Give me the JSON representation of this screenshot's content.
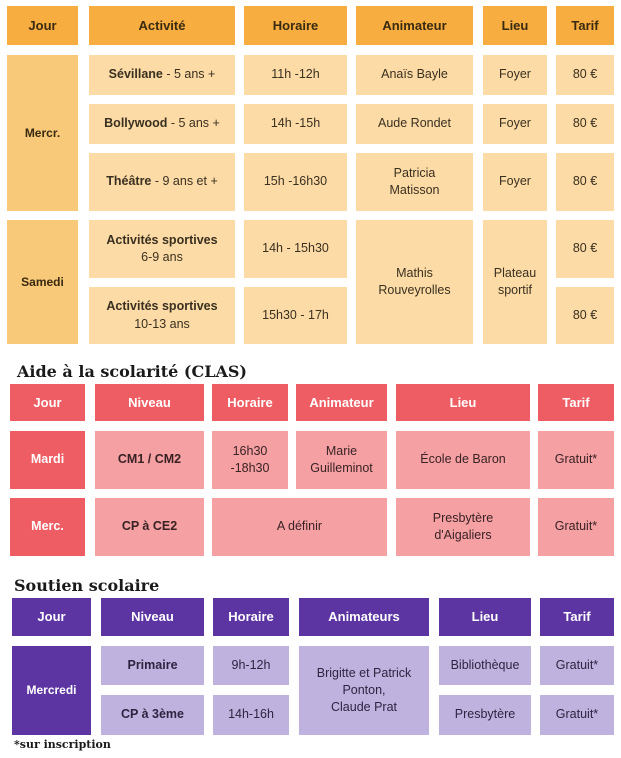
{
  "activities": {
    "headers": {
      "jour": "Jour",
      "activite": "Activité",
      "horaire": "Horaire",
      "animateur": "Animateur",
      "lieu": "Lieu",
      "tarif": "Tarif"
    },
    "days": {
      "mercredi": "Mercr.",
      "samedi": "Samedi"
    },
    "rows": [
      {
        "name": "Sévillane",
        "age": "5 ans +",
        "horaire": "11h -12h",
        "animateur": "Anaïs Bayle",
        "lieu": "Foyer",
        "tarif": "80 €"
      },
      {
        "name": "Bollywood",
        "age": "5 ans +",
        "horaire": "14h -15h",
        "animateur": "Aude Rondet",
        "lieu": "Foyer",
        "tarif": "80 €"
      },
      {
        "name": "Théâtre",
        "age": "9 ans et +",
        "horaire": "15h -16h30",
        "animateur": "Patricia\nMatisson",
        "lieu": "Foyer",
        "tarif": "80 €"
      },
      {
        "name": "Activités sportives",
        "age": "6-9 ans",
        "horaire": "14h - 15h30",
        "tarif": "80 €"
      },
      {
        "name": "Activités sportives",
        "age": "10-13 ans",
        "horaire": "15h30 - 17h",
        "tarif": "80 €"
      }
    ],
    "sport_animateur": "Mathis\nRouveyrolles",
    "sport_lieu": "Plateau\nsportif"
  },
  "clas": {
    "title": "Aide à la scolarité (CLAS)",
    "headers": {
      "jour": "Jour",
      "niveau": "Niveau",
      "horaire": "Horaire",
      "animateur": "Animateur",
      "lieu": "Lieu",
      "tarif": "Tarif"
    },
    "rows": [
      {
        "jour": "Mardi",
        "niveau": "CM1 / CM2",
        "horaire": "16h30\n-18h30",
        "animateur": "Marie\nGuilleminot",
        "lieu": "École de Baron",
        "tarif": "Gratuit*"
      },
      {
        "jour": "Merc.",
        "niveau": "CP à CE2",
        "horaire_animateur": "A définir",
        "lieu": "Presbytère\nd'Aigaliers",
        "tarif": "Gratuit*"
      }
    ]
  },
  "soutien": {
    "title": "Soutien scolaire",
    "headers": {
      "jour": "Jour",
      "niveau": "Niveau",
      "horaire": "Horaire",
      "animateurs": "Animateurs",
      "lieu": "Lieu",
      "tarif": "Tarif"
    },
    "day": "Mercredi",
    "rows": [
      {
        "niveau": "Primaire",
        "horaire": "9h-12h",
        "lieu": "Bibliothèque",
        "tarif": "Gratuit*"
      },
      {
        "niveau": "CP à 3ème",
        "horaire": "14h-16h",
        "lieu": "Presbytère",
        "tarif": "Gratuit*"
      }
    ],
    "animateurs": "Brigitte et Patrick\nPonton,\nClaude Prat"
  },
  "footnote": "*sur inscription",
  "colors": {
    "orange_header": "#f7ad3f",
    "orange_day": "#f7c978",
    "orange_cell": "#fcdba6",
    "red_header": "#ee5d63",
    "red_cell": "#f5a0a3",
    "purple_header": "#5d35a3",
    "purple_cell": "#c0b2df"
  }
}
